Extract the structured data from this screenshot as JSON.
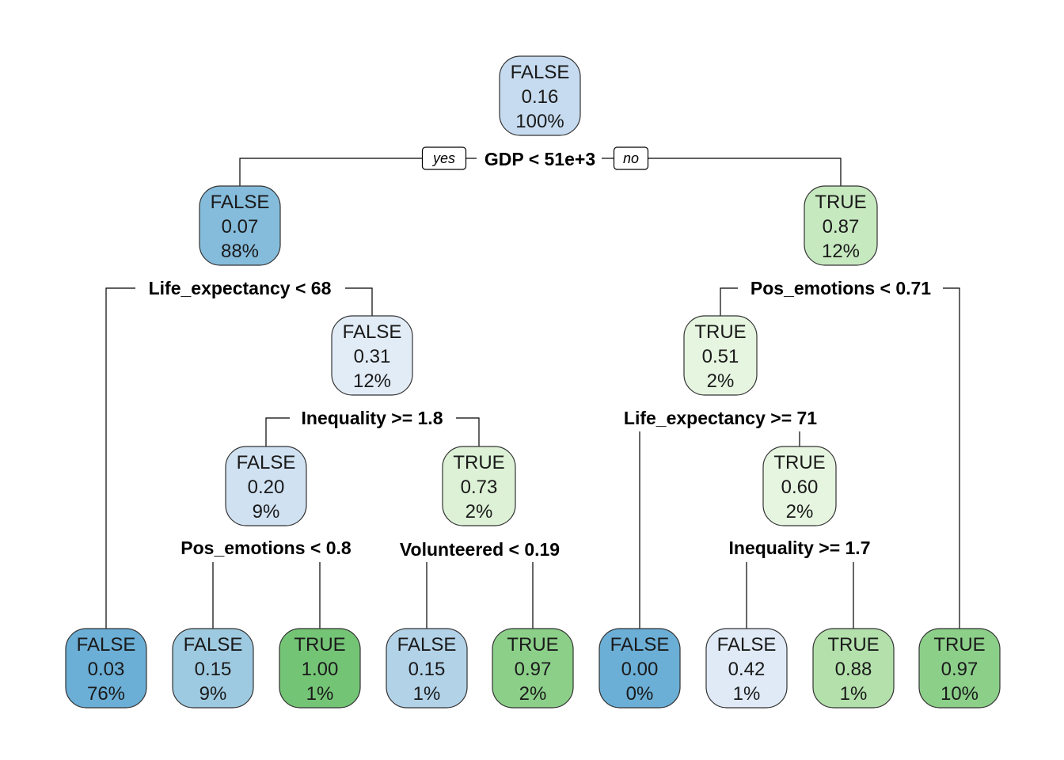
{
  "tree": {
    "branch_labels": {
      "yes": "yes",
      "no": "no"
    },
    "nodes": [
      {
        "id": "root",
        "cls": "FALSE",
        "prob": "0.16",
        "pct": "100%",
        "fill": "#c6dbef"
      },
      {
        "id": "n2",
        "cls": "FALSE",
        "prob": "0.07",
        "pct": "88%",
        "fill": "#85bcdc"
      },
      {
        "id": "n3",
        "cls": "TRUE",
        "prob": "0.87",
        "pct": "12%",
        "fill": "#c7e9c0"
      },
      {
        "id": "n5",
        "cls": "FALSE",
        "prob": "0.31",
        "pct": "12%",
        "fill": "#e2ecf7"
      },
      {
        "id": "n6",
        "cls": "TRUE",
        "prob": "0.51",
        "pct": "2%",
        "fill": "#e6f5e0"
      },
      {
        "id": "n10",
        "cls": "FALSE",
        "prob": "0.20",
        "pct": "9%",
        "fill": "#d0e1f2"
      },
      {
        "id": "n11",
        "cls": "TRUE",
        "prob": "0.73",
        "pct": "2%",
        "fill": "#dcf1d6"
      },
      {
        "id": "n13",
        "cls": "TRUE",
        "prob": "0.60",
        "pct": "2%",
        "fill": "#e6f5e0"
      },
      {
        "id": "leaf4",
        "cls": "FALSE",
        "prob": "0.03",
        "pct": "76%",
        "fill": "#6baed6"
      },
      {
        "id": "leaf20",
        "cls": "FALSE",
        "prob": "0.15",
        "pct": "9%",
        "fill": "#9ecae1"
      },
      {
        "id": "leaf21",
        "cls": "TRUE",
        "prob": "1.00",
        "pct": "1%",
        "fill": "#74c476"
      },
      {
        "id": "leaf22",
        "cls": "FALSE",
        "prob": "0.15",
        "pct": "1%",
        "fill": "#b2d2e8"
      },
      {
        "id": "leaf23",
        "cls": "TRUE",
        "prob": "0.97",
        "pct": "2%",
        "fill": "#8ccf89"
      },
      {
        "id": "leaf12",
        "cls": "FALSE",
        "prob": "0.00",
        "pct": "0%",
        "fill": "#6baed6"
      },
      {
        "id": "leaf26",
        "cls": "FALSE",
        "prob": "0.42",
        "pct": "1%",
        "fill": "#dfeaf6"
      },
      {
        "id": "leaf27",
        "cls": "TRUE",
        "prob": "0.88",
        "pct": "1%",
        "fill": "#b3e0ab"
      },
      {
        "id": "leaf7",
        "cls": "TRUE",
        "prob": "0.97",
        "pct": "10%",
        "fill": "#8ccf89"
      }
    ],
    "splits": [
      {
        "id": "root",
        "text": "GDP < 51e+3"
      },
      {
        "id": "n2",
        "text": "Life_expectancy < 68"
      },
      {
        "id": "n3",
        "text": "Pos_emotions < 0.71"
      },
      {
        "id": "n5",
        "text": "Inequality >= 1.8"
      },
      {
        "id": "n6",
        "text": "Life_expectancy >= 71"
      },
      {
        "id": "n10",
        "text": "Pos_emotions < 0.8"
      },
      {
        "id": "n11",
        "text": "Volunteered < 0.19"
      },
      {
        "id": "n13",
        "text": "Inequality >= 1.7"
      }
    ]
  }
}
